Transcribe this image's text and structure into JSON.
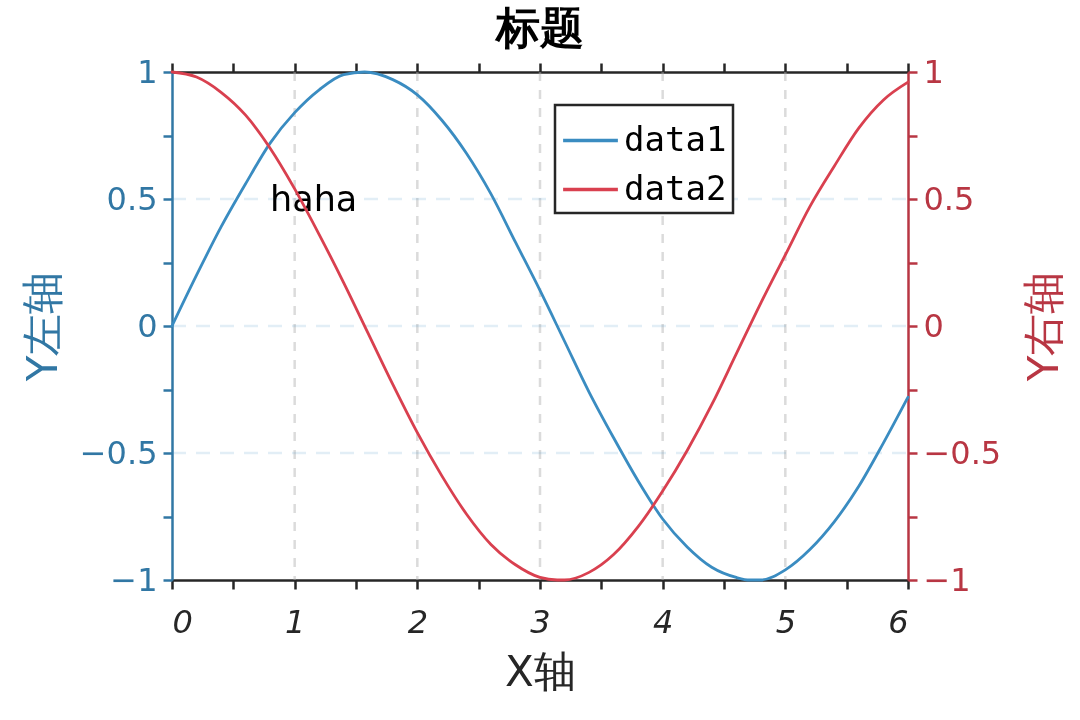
{
  "chart_data": {
    "type": "line",
    "title": "标题",
    "xlabel": "X轴",
    "ylabel": "Y左轴",
    "y2label": "Y右轴",
    "xlim": [
      0,
      6
    ],
    "xticks": [
      0,
      {
        "value": 0.5,
        "label": null
      },
      1,
      {
        "value": 1.5,
        "label": null
      },
      2,
      {
        "value": 2.5,
        "label": null
      },
      3,
      {
        "value": 3.5,
        "label": null
      },
      4,
      {
        "value": 4.5,
        "label": null
      },
      5,
      {
        "value": 5.5,
        "label": null
      },
      6
    ],
    "ylim": [
      -1,
      1
    ],
    "yticks": [
      -1,
      {
        "value": -0.75,
        "label": null
      },
      -0.5,
      {
        "value": -0.25,
        "label": null
      },
      0,
      {
        "value": 0.25,
        "label": null
      },
      0.5,
      {
        "value": 0.75,
        "label": null
      },
      1
    ],
    "y2lim": [
      -1,
      1
    ],
    "y2ticks": [
      -1,
      {
        "value": -0.75,
        "label": null
      },
      -0.5,
      {
        "value": -0.25,
        "label": null
      },
      0,
      {
        "value": 0.25,
        "label": null
      },
      0.5,
      {
        "value": 0.75,
        "label": null
      },
      1
    ],
    "grid": true,
    "legend": "top right",
    "line_style": "solid",
    "annotations": [
      "haha"
    ],
    "series": [
      {
        "name": "data1",
        "color": "#3a8cc1",
        "x": [
          0,
          0.2,
          0.4,
          0.6,
          0.8,
          1.0,
          1.2,
          1.4,
          1.57,
          1.8,
          2.0,
          2.2,
          2.4,
          2.6,
          2.8,
          3.0,
          3.2,
          3.4,
          3.6,
          3.8,
          4.0,
          4.2,
          4.4,
          4.6,
          4.71,
          4.8,
          5.0,
          5.2,
          5.4,
          5.6,
          5.8,
          6.0
        ],
        "values": [
          0,
          0.2,
          0.39,
          0.56,
          0.72,
          0.84,
          0.93,
          0.99,
          1.0,
          0.97,
          0.91,
          0.81,
          0.68,
          0.52,
          0.33,
          0.14,
          -0.06,
          -0.26,
          -0.44,
          -0.61,
          -0.76,
          -0.87,
          -0.95,
          -0.99,
          -1.0,
          -1.0,
          -0.96,
          -0.88,
          -0.77,
          -0.63,
          -0.46,
          -0.28
        ]
      },
      {
        "name": "data2",
        "color": "#d9404f",
        "axis": "y2",
        "x": [
          0,
          0.2,
          0.4,
          0.6,
          0.8,
          1.0,
          1.2,
          1.4,
          1.6,
          1.8,
          2.0,
          2.2,
          2.4,
          2.6,
          2.8,
          3.0,
          3.14,
          3.2,
          3.4,
          3.6,
          3.8,
          4.0,
          4.2,
          4.4,
          4.6,
          4.8,
          5.0,
          5.2,
          5.4,
          5.6,
          5.8,
          6.0
        ],
        "values": [
          1.0,
          0.98,
          0.92,
          0.83,
          0.7,
          0.54,
          0.36,
          0.17,
          -0.03,
          -0.23,
          -0.42,
          -0.59,
          -0.74,
          -0.86,
          -0.94,
          -0.99,
          -1.0,
          -1.0,
          -0.97,
          -0.9,
          -0.79,
          -0.65,
          -0.49,
          -0.31,
          -0.11,
          0.09,
          0.28,
          0.47,
          0.63,
          0.78,
          0.89,
          0.96
        ]
      }
    ]
  }
}
